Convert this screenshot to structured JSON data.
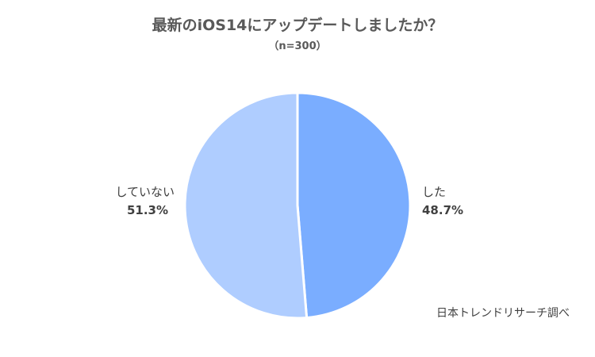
{
  "chart_data": {
    "type": "pie",
    "title": "最新のiOS14にアップデートしましたか？",
    "subtitle": "（n=300）",
    "slices": [
      {
        "label": "した",
        "value": 48.7,
        "display": "48.7%",
        "color": "#7AADFF"
      },
      {
        "label": "していない",
        "value": 51.3,
        "display": "51.3%",
        "color": "#AFCDFF"
      }
    ],
    "start_angle_deg": 0,
    "direction": "clockwise",
    "legend": "none",
    "source": "日本トレンドリサーチ調べ"
  }
}
